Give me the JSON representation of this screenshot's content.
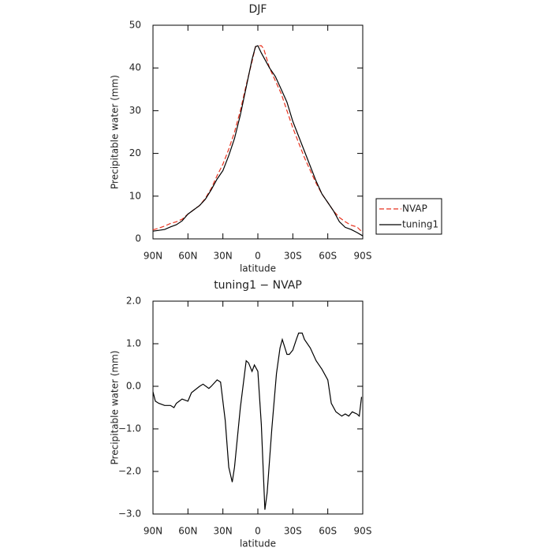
{
  "chart_data": [
    {
      "type": "line",
      "title": "DJF",
      "x_label": "latitude",
      "y_label": "Precipitable water (mm)",
      "x": [
        90,
        85,
        80,
        75,
        70,
        65,
        60,
        55,
        50,
        45,
        40,
        35,
        30,
        25,
        20,
        15,
        10,
        5,
        2,
        0,
        -3,
        -5,
        -10,
        -15,
        -20,
        -25,
        -30,
        -35,
        -40,
        -45,
        -50,
        -55,
        -60,
        -65,
        -70,
        -75,
        -80,
        -85,
        -90
      ],
      "series": [
        {
          "name": "NVAP",
          "color": "#e8321e",
          "style": "dashed",
          "values": [
            2.1,
            2.5,
            3,
            3.6,
            4,
            4.6,
            5.8,
            6.8,
            7.8,
            9.5,
            11.8,
            14.8,
            17.5,
            21,
            25,
            30,
            36,
            41.5,
            45,
            45.2,
            45.2,
            44.5,
            40,
            37,
            34,
            30,
            26,
            22.5,
            19,
            16,
            13,
            10.5,
            8.5,
            6.5,
            5,
            4,
            3.2,
            2.8,
            1.5
          ]
        },
        {
          "name": "tuning1",
          "color": "#000000",
          "style": "solid",
          "values": [
            1.8,
            2,
            2.2,
            2.8,
            3.3,
            4.2,
            5.8,
            6.8,
            7.8,
            9.3,
            11.5,
            14,
            16,
            19.5,
            23.5,
            29,
            35.5,
            42,
            45,
            45.2,
            43.5,
            42.5,
            40,
            38,
            35,
            32,
            27.5,
            24,
            20.5,
            17,
            13.5,
            10.5,
            8.5,
            6.5,
            4,
            2.7,
            2.2,
            1.5,
            0.7
          ]
        }
      ],
      "xlim": [
        90,
        -90
      ],
      "xticks": [
        {
          "value": 90,
          "label": "90N"
        },
        {
          "value": 60,
          "label": "60N"
        },
        {
          "value": 30,
          "label": "30N"
        },
        0,
        {
          "value": -30,
          "label": "30S"
        },
        {
          "value": -60,
          "label": "60S"
        },
        {
          "value": -90,
          "label": "90S"
        }
      ],
      "ylim": [
        0,
        50
      ],
      "yticks": [
        0,
        10,
        20,
        30,
        40,
        50
      ],
      "legend": "right"
    },
    {
      "type": "line",
      "title": "tuning1 − NVAP",
      "x_label": "latitude",
      "y_label": "Precipitable water (mm)",
      "x": [
        90,
        88,
        85,
        80,
        75,
        72,
        70,
        65,
        60,
        57,
        50,
        47,
        42,
        40,
        35,
        32,
        28,
        25,
        22,
        20,
        15,
        10,
        8,
        5,
        3,
        0,
        -3,
        -6,
        -8,
        -12,
        -16,
        -19,
        -21,
        -25,
        -27,
        -30,
        -33,
        -35,
        -38,
        -40,
        -45,
        -50,
        -55,
        -60,
        -63,
        -67,
        -72,
        -75,
        -78,
        -81,
        -85,
        -87,
        -89
      ],
      "series": [
        {
          "name": "tuning1 − NVAP",
          "color": "#000000",
          "style": "solid",
          "values": [
            -0.13,
            -0.35,
            -0.4,
            -0.45,
            -0.45,
            -0.5,
            -0.4,
            -0.3,
            -0.35,
            -0.15,
            0,
            0.05,
            -0.05,
            0,
            0.15,
            0.1,
            -0.8,
            -1.9,
            -2.25,
            -1.9,
            -0.5,
            0.6,
            0.55,
            0.35,
            0.5,
            0.35,
            -0.9,
            -2.9,
            -2.5,
            -1,
            0.3,
            0.9,
            1.1,
            0.75,
            0.75,
            0.85,
            1.1,
            1.25,
            1.25,
            1.1,
            0.9,
            0.6,
            0.4,
            0.15,
            -0.4,
            -0.6,
            -0.7,
            -0.65,
            -0.7,
            -0.6,
            -0.65,
            -0.7,
            -0.25
          ]
        }
      ],
      "xlim": [
        90,
        -90
      ],
      "xticks": [
        {
          "value": 90,
          "label": "90N"
        },
        {
          "value": 60,
          "label": "60N"
        },
        {
          "value": 30,
          "label": "30N"
        },
        0,
        {
          "value": -30,
          "label": "30S"
        },
        {
          "value": -60,
          "label": "60S"
        },
        {
          "value": -90,
          "label": "90S"
        }
      ],
      "ylim": [
        -3,
        2
      ],
      "yticks": [
        {
          "value": 2,
          "label": "2.0"
        },
        {
          "value": 1,
          "label": "1.0"
        },
        {
          "value": 0,
          "label": "0.0"
        },
        {
          "value": -1,
          "label": "−1.0"
        },
        {
          "value": -2,
          "label": "−2.0"
        },
        {
          "value": -3,
          "label": "−3.0"
        }
      ]
    }
  ]
}
